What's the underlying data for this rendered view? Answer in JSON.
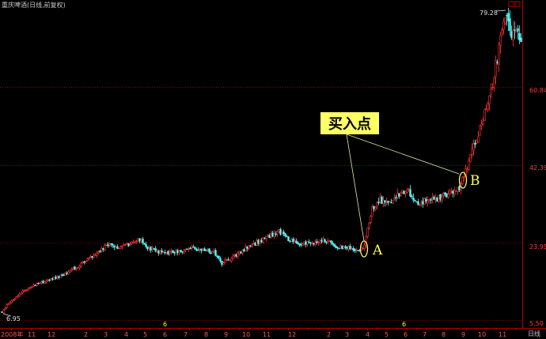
{
  "chart_data": {
    "type": "candlestick",
    "title": "重庆啤酒(日线,前复权)",
    "y_ticks": [
      "60.84",
      "42.39",
      "23.95",
      "5.50"
    ],
    "y_tick_values": [
      60.84,
      42.39,
      23.95,
      5.5
    ],
    "ylim": [
      5.5,
      79.28
    ],
    "max_label": "79.28",
    "min_label": "6.95",
    "period_label": "日线",
    "x_ticks": [
      "2008年",
      "11",
      "12",
      "2",
      "3",
      "4",
      "5",
      "6",
      "7",
      "8",
      "9",
      "10",
      "11",
      "12",
      "2",
      "3",
      "4",
      "5",
      "6",
      "7",
      "8",
      "9",
      "10",
      "11"
    ],
    "year_marks": [
      "6",
      "6"
    ],
    "annotation": {
      "text": "买入点",
      "points": [
        "A",
        "B"
      ]
    },
    "trend": [
      [
        0,
        7.0
      ],
      [
        10,
        9.5
      ],
      [
        20,
        11.0
      ],
      [
        30,
        12.5
      ],
      [
        45,
        14.0
      ],
      [
        60,
        15.0
      ],
      [
        75,
        15.8
      ],
      [
        90,
        17.5
      ],
      [
        105,
        19.0
      ],
      [
        120,
        21.0
      ],
      [
        135,
        23.5
      ],
      [
        150,
        22.5
      ],
      [
        165,
        23.8
      ],
      [
        175,
        25.0
      ],
      [
        185,
        22.5
      ],
      [
        200,
        21.8
      ],
      [
        215,
        21.5
      ],
      [
        230,
        21.8
      ],
      [
        245,
        22.5
      ],
      [
        260,
        22.0
      ],
      [
        270,
        21.5
      ],
      [
        280,
        19.0
      ],
      [
        295,
        20.5
      ],
      [
        310,
        22.5
      ],
      [
        325,
        24.0
      ],
      [
        340,
        25.5
      ],
      [
        352,
        26.5
      ],
      [
        365,
        24.5
      ],
      [
        380,
        23.5
      ],
      [
        395,
        24.0
      ],
      [
        410,
        24.5
      ],
      [
        425,
        23.0
      ],
      [
        440,
        22.5
      ],
      [
        455,
        22.0
      ],
      [
        460,
        23.5
      ],
      [
        470,
        32.0
      ],
      [
        480,
        34.0
      ],
      [
        490,
        33.0
      ],
      [
        500,
        35.0
      ],
      [
        515,
        36.5
      ],
      [
        525,
        33.0
      ],
      [
        540,
        34.0
      ],
      [
        555,
        34.5
      ],
      [
        570,
        36.0
      ],
      [
        580,
        37.0
      ],
      [
        590,
        42.0
      ],
      [
        600,
        48.0
      ],
      [
        610,
        53.0
      ],
      [
        620,
        60.0
      ],
      [
        628,
        68.0
      ],
      [
        635,
        76.0
      ],
      [
        640,
        79.28
      ],
      [
        645,
        73.0
      ],
      [
        652,
        75.0
      ],
      [
        658,
        71.0
      ]
    ]
  }
}
